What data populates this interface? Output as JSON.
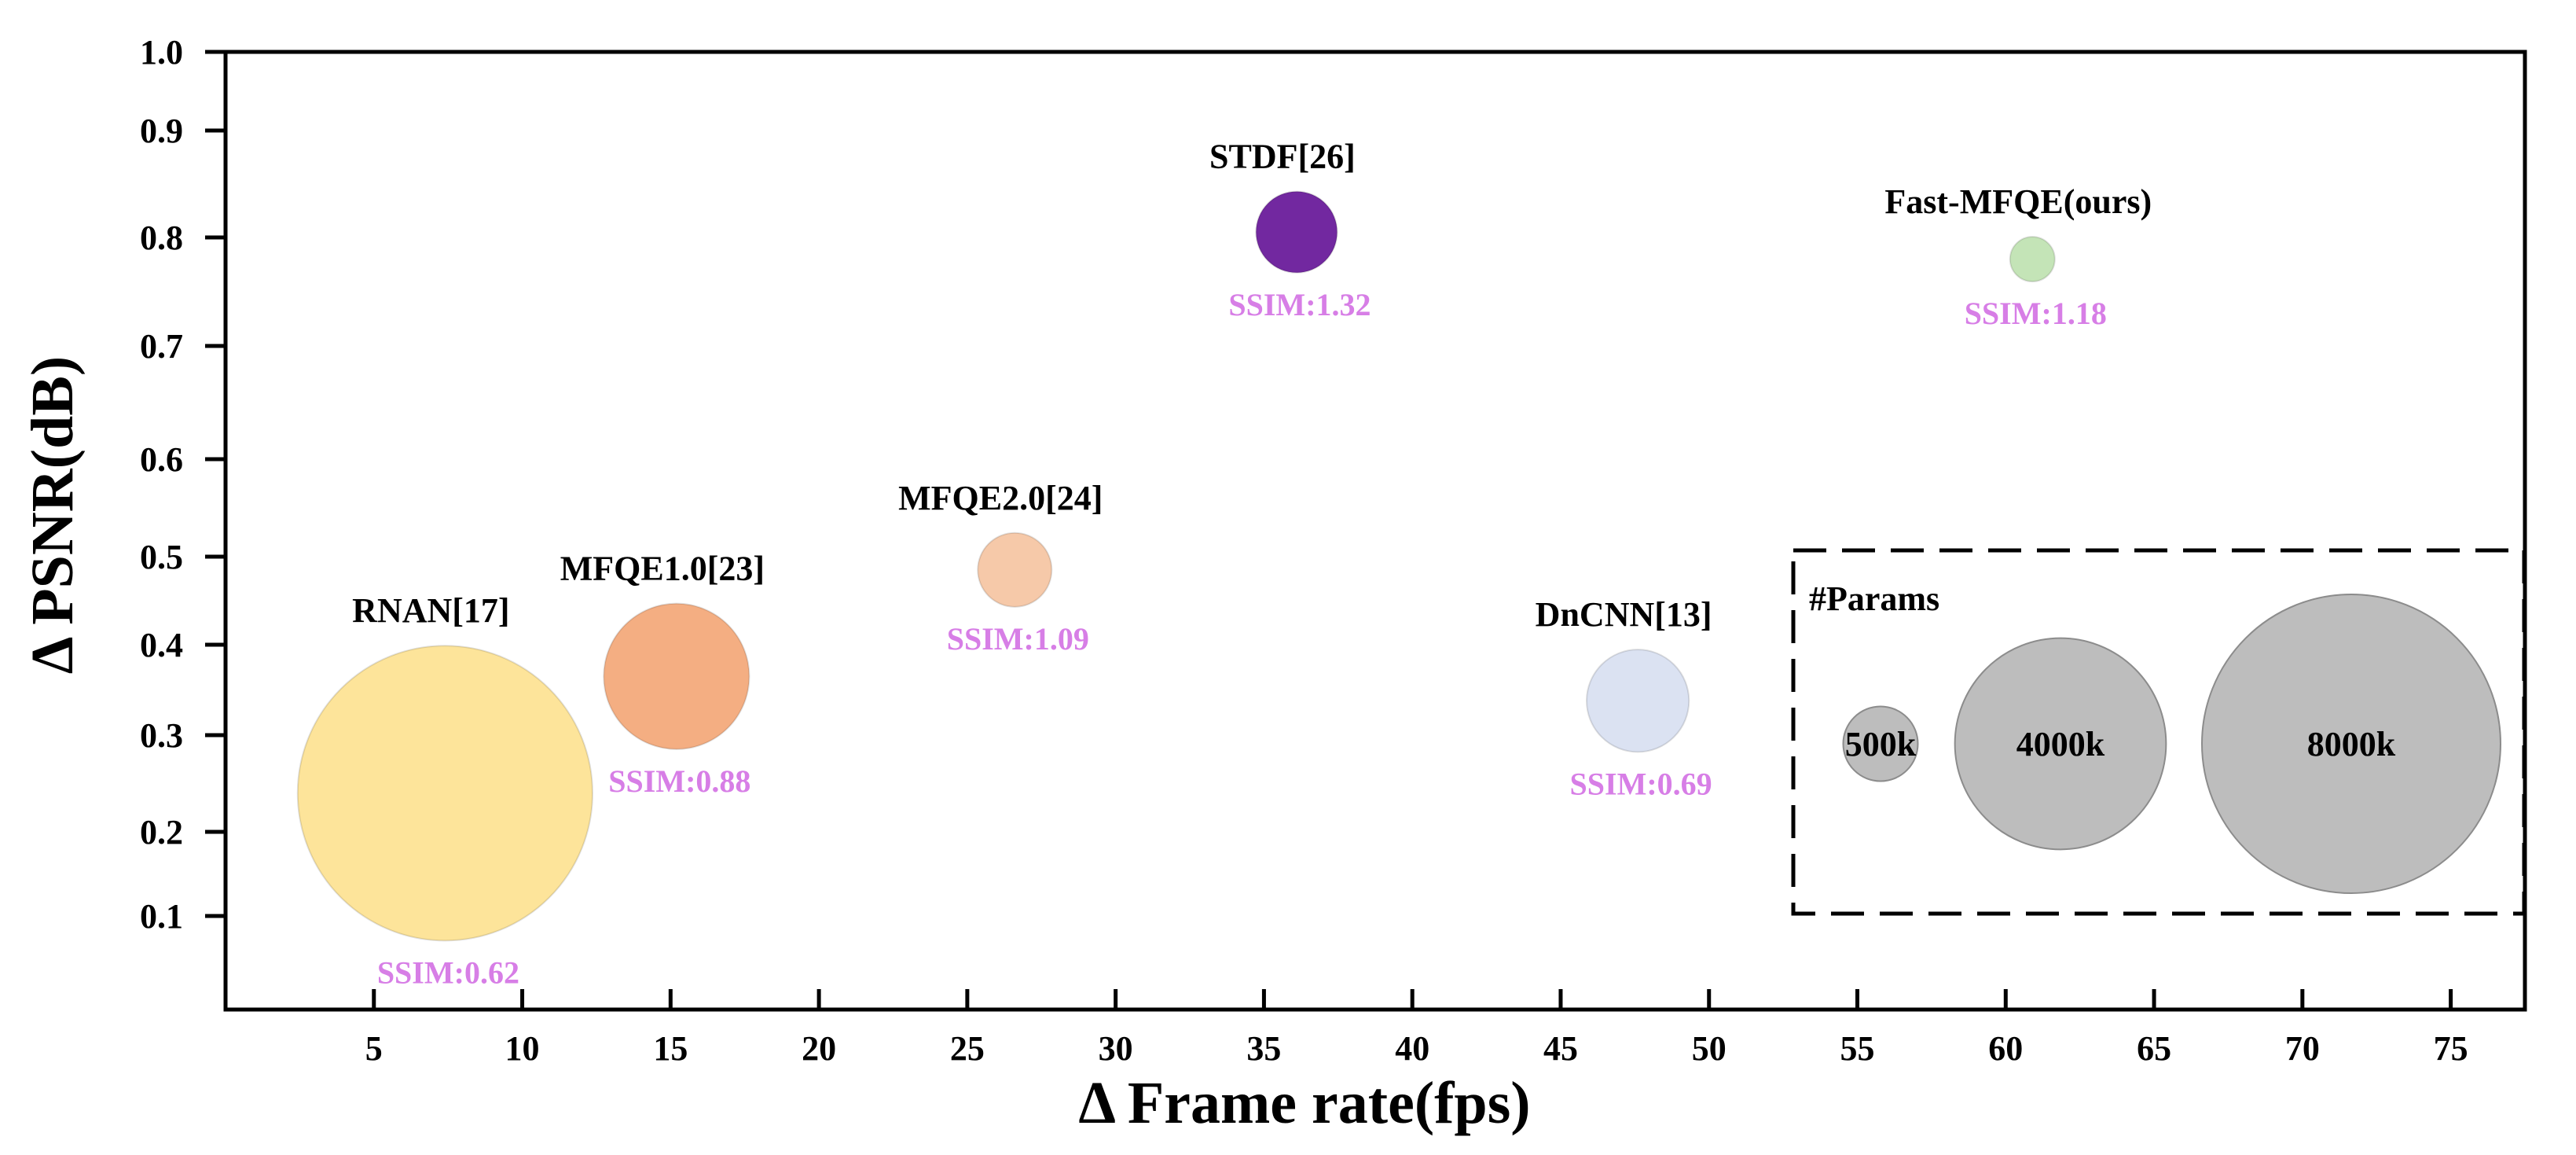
{
  "chart_data": {
    "type": "scatter",
    "subtype": "bubble",
    "xlabel": "Δ Frame rate(fps)",
    "ylabel": "Δ PSNR(dB)",
    "xlim": [
      0,
      77.5
    ],
    "ylim": [
      0,
      1.0
    ],
    "xticks": [
      5,
      10,
      15,
      20,
      25,
      30,
      35,
      40,
      45,
      50,
      55,
      60,
      65,
      70,
      75
    ],
    "xtick_labels": [
      "5",
      "10",
      "15",
      "20",
      "25",
      "30",
      "35",
      "40",
      "45",
      "50",
      "55",
      "60",
      "65",
      "70",
      "75"
    ],
    "yticks": [
      0.1,
      0.2,
      0.3,
      0.4,
      0.5,
      0.6,
      0.7,
      0.8,
      0.9,
      1.0
    ],
    "ytick_labels": [
      "0.1",
      "0.2",
      "0.3",
      "0.4",
      "0.5",
      "0.6",
      "0.7",
      "0.8",
      "0.9",
      "1.0"
    ],
    "points": [
      {
        "name": "RNAN[17]",
        "x": 7.4,
        "y": 0.24,
        "params_k": 7800,
        "ssim_label": "SSIM:0.62",
        "color": "#fde49a"
      },
      {
        "name": "MFQE1.0[23]",
        "x": 15.2,
        "y": 0.365,
        "params_k": 1900,
        "ssim_label": "SSIM:0.88",
        "color": "#f4ae82"
      },
      {
        "name": "MFQE2.0[24]",
        "x": 26.6,
        "y": 0.485,
        "params_k": 490,
        "ssim_label": "SSIM:1.09",
        "color": "#f6c9a9"
      },
      {
        "name": "STDF[26]",
        "x": 36.1,
        "y": 0.805,
        "params_k": 590,
        "ssim_label": "SSIM:1.32",
        "color": "#7228a0"
      },
      {
        "name": "DnCNN[13]",
        "x": 47.6,
        "y": 0.338,
        "params_k": 940,
        "ssim_label": "SSIM:0.69",
        "color": "#dbe2f2"
      },
      {
        "name": "Fast-MFQE(ours)",
        "x": 60.9,
        "y": 0.78,
        "params_k": 180,
        "ssim_label": "SSIM:1.18",
        "color": "#c4e4b7"
      }
    ],
    "size_legend": {
      "title": "#Params",
      "color": "#bdbdbd",
      "entries": [
        {
          "label": "500k",
          "params_k": 500
        },
        {
          "label": "4000k",
          "params_k": 4000
        },
        {
          "label": "8000k",
          "params_k": 8000
        }
      ]
    }
  }
}
